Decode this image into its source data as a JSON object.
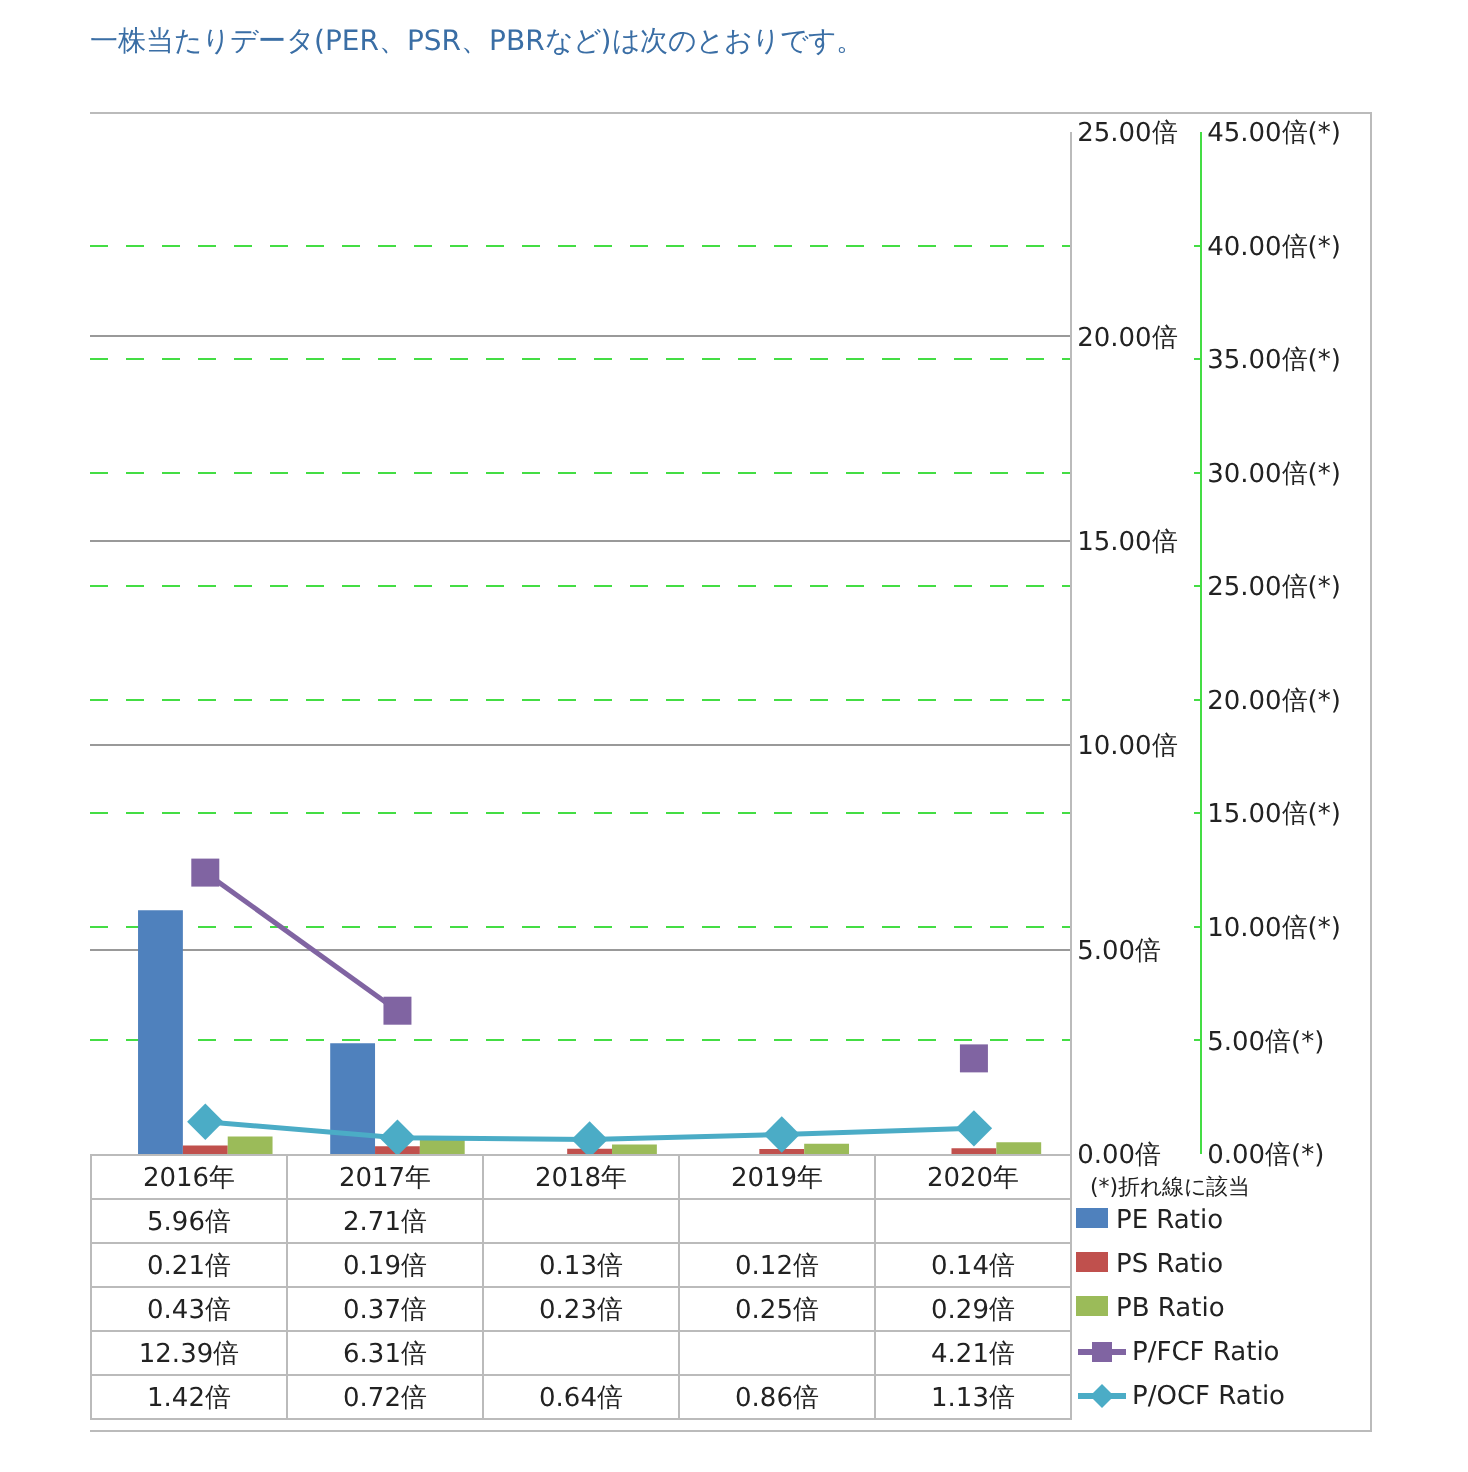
{
  "chart_data": {
    "type": "bar",
    "title": "一株当たりデータ(PER、PSR、PBRなど)は次のとおりです。",
    "categories": [
      "2016年",
      "2017年",
      "2018年",
      "2019年",
      "2020年"
    ],
    "series": [
      {
        "name": "PE Ratio",
        "color": "#4f81bd",
        "values": [
          5.96,
          2.71,
          null,
          null,
          null
        ],
        "value_labels": [
          "5.96倍",
          "2.71倍",
          null,
          null,
          null
        ]
      },
      {
        "name": "PS Ratio",
        "color": "#c0504d",
        "values": [
          0.21,
          0.19,
          0.13,
          0.12,
          0.14
        ],
        "value_labels": [
          "0.21倍",
          "0.19倍",
          "0.13倍",
          "0.12倍",
          "0.14倍"
        ]
      },
      {
        "name": "PB Ratio",
        "color": "#9bbb59",
        "values": [
          0.43,
          0.37,
          0.23,
          0.25,
          0.29
        ],
        "value_labels": [
          "0.43倍",
          "0.37倍",
          "0.23倍",
          "0.25倍",
          "0.29倍"
        ]
      },
      {
        "name": "P/FCF Ratio",
        "type": "line",
        "axis": "y2",
        "marker": "square",
        "color": "#8064a2",
        "values": [
          12.39,
          6.31,
          null,
          null,
          4.21
        ],
        "value_labels": [
          "12.39倍",
          "6.31倍",
          null,
          null,
          "4.21倍"
        ]
      },
      {
        "name": "P/OCF Ratio",
        "type": "line",
        "axis": "y2",
        "marker": "diamond",
        "color": "#4bacc6",
        "values": [
          1.42,
          0.72,
          0.64,
          0.86,
          1.13
        ],
        "value_labels": [
          "1.42倍",
          "0.72倍",
          "0.64倍",
          "0.86倍",
          "1.13倍"
        ]
      }
    ],
    "ylim": [
      0,
      25
    ],
    "yticks": [
      {
        "value": 0,
        "label": "0.00倍"
      },
      {
        "value": 5,
        "label": "5.00倍"
      },
      {
        "value": 10,
        "label": "10.00倍"
      },
      {
        "value": 15,
        "label": "15.00倍"
      },
      {
        "value": 20,
        "label": "20.00倍"
      },
      {
        "value": 25,
        "label": "25.00倍"
      }
    ],
    "y2lim": [
      0,
      45
    ],
    "y2ticks": [
      {
        "value": 0,
        "label": "0.00倍(*)"
      },
      {
        "value": 5,
        "label": "5.00倍(*)"
      },
      {
        "value": 10,
        "label": "10.00倍(*)"
      },
      {
        "value": 15,
        "label": "15.00倍(*)"
      },
      {
        "value": 20,
        "label": "20.00倍(*)"
      },
      {
        "value": 25,
        "label": "25.00倍(*)"
      },
      {
        "value": 30,
        "label": "30.00倍(*)"
      },
      {
        "value": 35,
        "label": "35.00倍(*)"
      },
      {
        "value": 40,
        "label": "40.00倍(*)"
      },
      {
        "value": 45,
        "label": "45.00倍(*)"
      }
    ],
    "grid": true,
    "legend": "right",
    "annotations": [
      "(*)折れ線に該当"
    ]
  }
}
